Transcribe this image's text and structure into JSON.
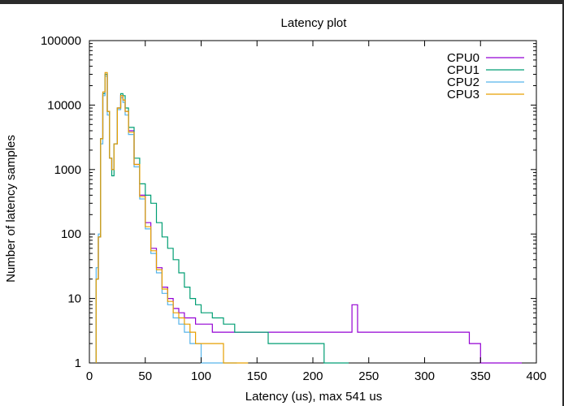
{
  "colors": {
    "background_frame": "#2b2b2b",
    "plot_background": "#ffffff",
    "axis": "#000000"
  },
  "chart_data": {
    "type": "line",
    "title": "Latency plot",
    "xlabel": "Latency (us), max 541 us",
    "ylabel": "Number of latency samples",
    "xlim": [
      0,
      400
    ],
    "ylim": [
      1,
      100000
    ],
    "yscale": "log",
    "grid": false,
    "legend_position": "top-right",
    "xticks": [
      0,
      50,
      100,
      150,
      200,
      250,
      300,
      350,
      400
    ],
    "xtick_labels": [
      "0",
      "50",
      "100",
      "150",
      "200",
      "250",
      "300",
      "350",
      "400"
    ],
    "yticks": [
      1,
      10,
      100,
      1000,
      10000,
      100000
    ],
    "ytick_labels": [
      "1",
      "10",
      "100",
      "1000",
      "10000",
      "100000"
    ],
    "series": [
      {
        "name": "CPU0",
        "color": "#9400d3",
        "x": [
          6,
          8,
          10,
          12,
          14,
          16,
          18,
          20,
          22,
          25,
          28,
          30,
          32,
          35,
          40,
          45,
          50,
          55,
          60,
          65,
          70,
          75,
          80,
          85,
          90,
          95,
          100,
          110,
          120,
          130,
          140,
          150,
          160,
          170,
          180,
          190,
          200,
          210,
          220,
          230,
          235,
          240,
          250,
          260,
          270,
          280,
          290,
          300,
          310,
          320,
          330,
          340,
          350,
          360,
          370,
          380,
          385
        ],
        "y": [
          20,
          90,
          3000,
          15000,
          30000,
          8000,
          1500,
          1000,
          2500,
          9000,
          14000,
          12000,
          8000,
          4000,
          1200,
          400,
          150,
          60,
          30,
          15,
          10,
          7,
          6,
          5,
          5,
          4,
          4,
          3,
          3,
          3,
          3,
          3,
          3,
          3,
          3,
          3,
          3,
          3,
          3,
          3,
          8,
          3,
          3,
          3,
          3,
          3,
          3,
          3,
          3,
          3,
          3,
          2,
          1,
          1,
          1,
          1,
          1
        ]
      },
      {
        "name": "CPU1",
        "color": "#009e73",
        "x": [
          6,
          8,
          10,
          12,
          14,
          16,
          18,
          20,
          22,
          25,
          28,
          30,
          32,
          35,
          40,
          45,
          50,
          55,
          60,
          65,
          70,
          75,
          80,
          85,
          90,
          95,
          100,
          110,
          120,
          130,
          140,
          150,
          160,
          170,
          180,
          190,
          200,
          210,
          220,
          230
        ],
        "y": [
          20,
          90,
          3000,
          15000,
          30000,
          8000,
          1500,
          800,
          2500,
          9000,
          15000,
          14000,
          9000,
          4500,
          1500,
          600,
          400,
          300,
          150,
          90,
          60,
          40,
          25,
          15,
          10,
          8,
          6,
          5,
          4,
          3,
          3,
          3,
          2,
          2,
          2,
          2,
          2,
          1,
          1,
          1
        ]
      },
      {
        "name": "CPU2",
        "color": "#56b4e9",
        "x": [
          6,
          8,
          10,
          12,
          14,
          16,
          18,
          20,
          22,
          25,
          28,
          30,
          32,
          35,
          40,
          45,
          50,
          55,
          60,
          65,
          70,
          75,
          80,
          85,
          90,
          95,
          100,
          110,
          120,
          130
        ],
        "y": [
          30,
          100,
          2500,
          14000,
          28000,
          7000,
          1500,
          1000,
          2500,
          8500,
          13000,
          11000,
          7000,
          3500,
          1100,
          350,
          120,
          50,
          25,
          12,
          8,
          5,
          4,
          3,
          2,
          2,
          1,
          1,
          1,
          1
        ]
      },
      {
        "name": "CPU3",
        "color": "#e69f00",
        "x": [
          6,
          8,
          10,
          12,
          14,
          16,
          18,
          20,
          22,
          25,
          28,
          30,
          32,
          35,
          40,
          45,
          50,
          55,
          60,
          65,
          70,
          75,
          80,
          85,
          90,
          95,
          100,
          110,
          120,
          130,
          140
        ],
        "y": [
          20,
          90,
          3000,
          16000,
          32000,
          8000,
          1500,
          1000,
          2500,
          9000,
          14000,
          12000,
          8000,
          3800,
          1200,
          380,
          130,
          55,
          28,
          14,
          9,
          6,
          5,
          4,
          3,
          2,
          2,
          2,
          1,
          1,
          1
        ]
      }
    ]
  }
}
